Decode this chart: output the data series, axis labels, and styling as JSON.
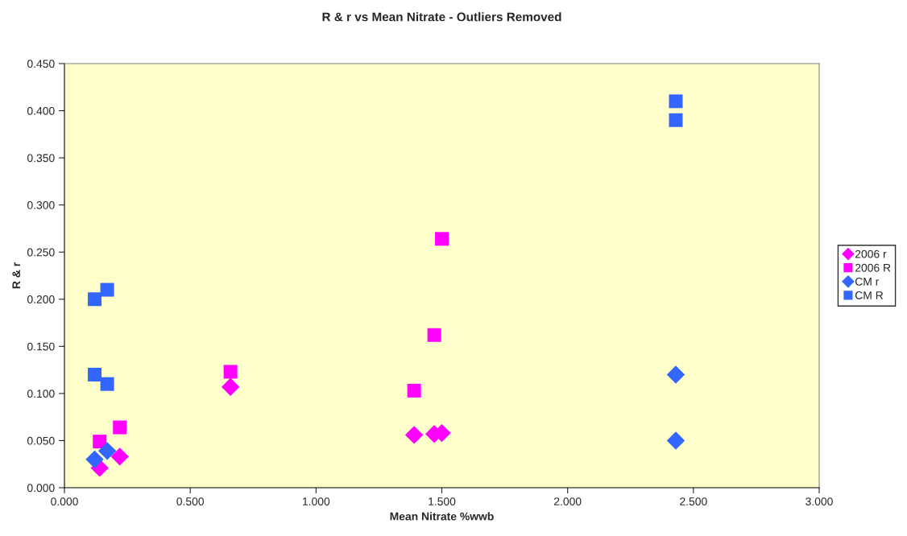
{
  "chart_data": {
    "type": "scatter",
    "title": "R & r vs Mean Nitrate - Outliers Removed",
    "xlabel": "Mean Nitrate %wwb",
    "ylabel": "R & r",
    "xlim": [
      0,
      3
    ],
    "xticks": [
      {
        "value": 0,
        "label": "0.000"
      },
      {
        "value": 0.5,
        "label": "0.500"
      },
      {
        "value": 1,
        "label": "1.000"
      },
      {
        "value": 1.5,
        "label": "1.500"
      },
      {
        "value": 2,
        "label": "2.000"
      },
      {
        "value": 2.5,
        "label": "2.500"
      },
      {
        "value": 3,
        "label": "3.000"
      }
    ],
    "ylim": [
      0,
      0.45
    ],
    "yticks": [
      {
        "value": 0,
        "label": "0.000"
      },
      {
        "value": 0.05,
        "label": "0.050"
      },
      {
        "value": 0.1,
        "label": "0.100"
      },
      {
        "value": 0.15,
        "label": "0.150"
      },
      {
        "value": 0.2,
        "label": "0.200"
      },
      {
        "value": 0.25,
        "label": "0.250"
      },
      {
        "value": 0.3,
        "label": "0.300"
      },
      {
        "value": 0.35,
        "label": "0.350"
      },
      {
        "value": 0.4,
        "label": "0.400"
      },
      {
        "value": 0.45,
        "label": "0.450"
      }
    ],
    "grid": false,
    "legend": "right",
    "series": [
      {
        "name": "2006 r",
        "color": "#ff00ff",
        "marker": "diamond",
        "x": [
          0.14,
          0.22,
          0.66,
          1.39,
          1.47,
          1.5
        ],
        "values": [
          0.021,
          0.033,
          0.107,
          0.056,
          0.057,
          0.058
        ]
      },
      {
        "name": "2006 R",
        "color": "#ff00ff",
        "marker": "square",
        "x": [
          0.14,
          0.22,
          0.66,
          1.39,
          1.47,
          1.5
        ],
        "values": [
          0.049,
          0.064,
          0.123,
          0.103,
          0.162,
          0.264
        ]
      },
      {
        "name": "CM r",
        "color": "#3366ff",
        "marker": "diamond",
        "x": [
          0.12,
          0.17,
          2.43,
          2.43
        ],
        "values": [
          0.03,
          0.039,
          0.12,
          0.05
        ]
      },
      {
        "name": "CM R",
        "color": "#3366ff",
        "marker": "square",
        "x": [
          0.12,
          0.17,
          0.12,
          0.17,
          2.43,
          2.43
        ],
        "values": [
          0.2,
          0.21,
          0.12,
          0.11,
          0.41,
          0.39
        ]
      }
    ]
  }
}
